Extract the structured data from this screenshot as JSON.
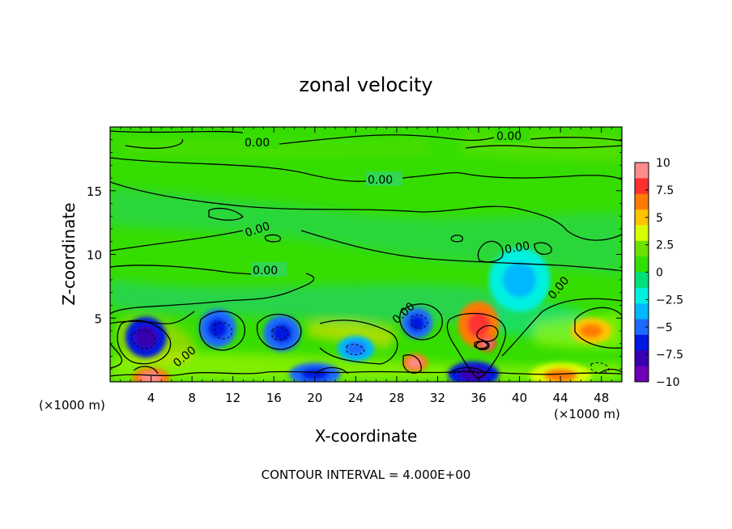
{
  "chart_data": {
    "type": "heatmap",
    "title": "zonal velocity",
    "xlabel": "X-coordinate",
    "ylabel": "Z-coordinate",
    "x_unit_label": "(×1000 m)",
    "x_unit_label_right": "(×1000 m)",
    "xlim": [
      0,
      50
    ],
    "ylim": [
      0,
      20
    ],
    "xticks": [
      4,
      8,
      12,
      16,
      20,
      24,
      28,
      32,
      36,
      40,
      44,
      48
    ],
    "xtick_labels": [
      "4",
      "8",
      "12",
      "16",
      "20",
      "24",
      "28",
      "32",
      "36",
      "40",
      "44",
      "48"
    ],
    "yticks": [
      5,
      10,
      15
    ],
    "ytick_labels": [
      "5",
      "10",
      "15"
    ],
    "contour_labels": [
      "0.00",
      "0.00",
      "0.00",
      "0.00",
      "0.00",
      "0.00",
      "0.00",
      "0.00",
      "0.00"
    ],
    "contour_interval_text": "CONTOUR INTERVAL = 4.000E+00",
    "colorbar": {
      "min": -10,
      "max": 10,
      "tick_labels": [
        "10",
        "7.5",
        "5",
        "2.5",
        "0",
        "−2.5",
        "−5",
        "−7.5",
        "−10"
      ],
      "colors": [
        "#ff8c8c",
        "#ff3030",
        "#ff7a00",
        "#ffc400",
        "#d8ff00",
        "#6ee000",
        "#30e000",
        "#00e07a",
        "#00f0e0",
        "#00b8ff",
        "#1e6aff",
        "#0018e0",
        "#3800b0",
        "#7000b8"
      ]
    },
    "features": [
      {
        "x": 3.5,
        "z": 3.5,
        "value": -6,
        "rx": 2.0,
        "rz": 1.6
      },
      {
        "x": 10.5,
        "z": 4.2,
        "value": -5,
        "rx": 1.8,
        "rz": 1.5
      },
      {
        "x": 16.8,
        "z": 3.8,
        "value": -5,
        "rx": 1.8,
        "rz": 1.4
      },
      {
        "x": 30,
        "z": 4.6,
        "value": -5,
        "rx": 1.5,
        "rz": 1.2
      },
      {
        "x": 36,
        "z": 4.5,
        "value": 6,
        "rx": 2.0,
        "rz": 1.8
      },
      {
        "x": 36.8,
        "z": 3.0,
        "value": 8,
        "rx": 0.9,
        "rz": 0.6
      },
      {
        "x": 47,
        "z": 4.0,
        "value": 5,
        "rx": 2.0,
        "rz": 1.0
      },
      {
        "x": 4,
        "z": 0.3,
        "value": 7,
        "rx": 1.8,
        "rz": 0.8
      },
      {
        "x": 29.8,
        "z": 1.5,
        "value": 7,
        "rx": 1.2,
        "rz": 0.7
      },
      {
        "x": 35.5,
        "z": 0.6,
        "value": -6,
        "rx": 2.5,
        "rz": 1.0
      },
      {
        "x": 20,
        "z": 0.6,
        "value": -5,
        "rx": 2.5,
        "rz": 0.9
      },
      {
        "x": 44,
        "z": 0.5,
        "value": 4,
        "rx": 3,
        "rz": 1.0
      },
      {
        "x": 24,
        "z": 2.6,
        "value": -3,
        "rx": 1.8,
        "rz": 1.0
      },
      {
        "x": 40,
        "z": 8.0,
        "value": -2,
        "rx": 3,
        "rz": 2.5
      }
    ]
  }
}
